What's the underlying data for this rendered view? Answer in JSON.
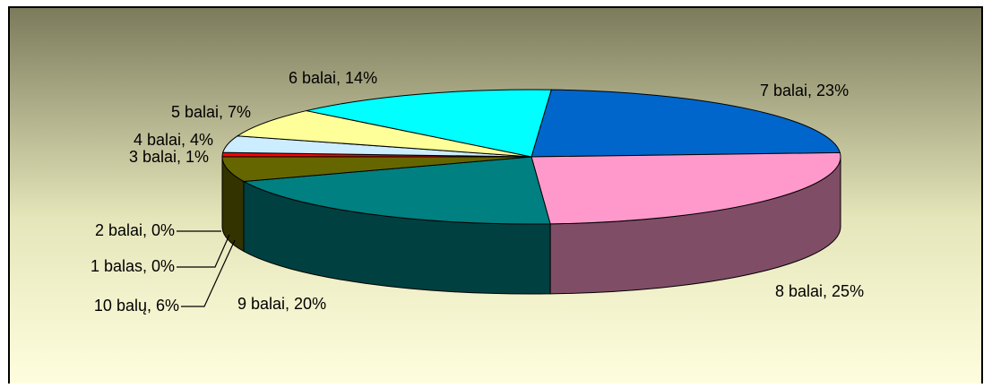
{
  "chart_data": {
    "type": "pie3d",
    "values": [
      23,
      25,
      20,
      6,
      0,
      0,
      1,
      4,
      7,
      14
    ],
    "value_labels": [
      "7 balai, 23%",
      "8 balai, 25%",
      "9 balai, 20%",
      "10 balų, 6%",
      "1 balas, 0%",
      "2 balai, 0%",
      "3 balai, 1%",
      "4 balai, 4%",
      "5 balai, 7%",
      "6 balai, 14%"
    ],
    "colors": [
      "#0066cc",
      "#ff99cc",
      "#008080",
      "#666600",
      "#993300",
      "#808000",
      "#ff0000",
      "#ccecff",
      "#ffff99",
      "#00ffff"
    ]
  }
}
